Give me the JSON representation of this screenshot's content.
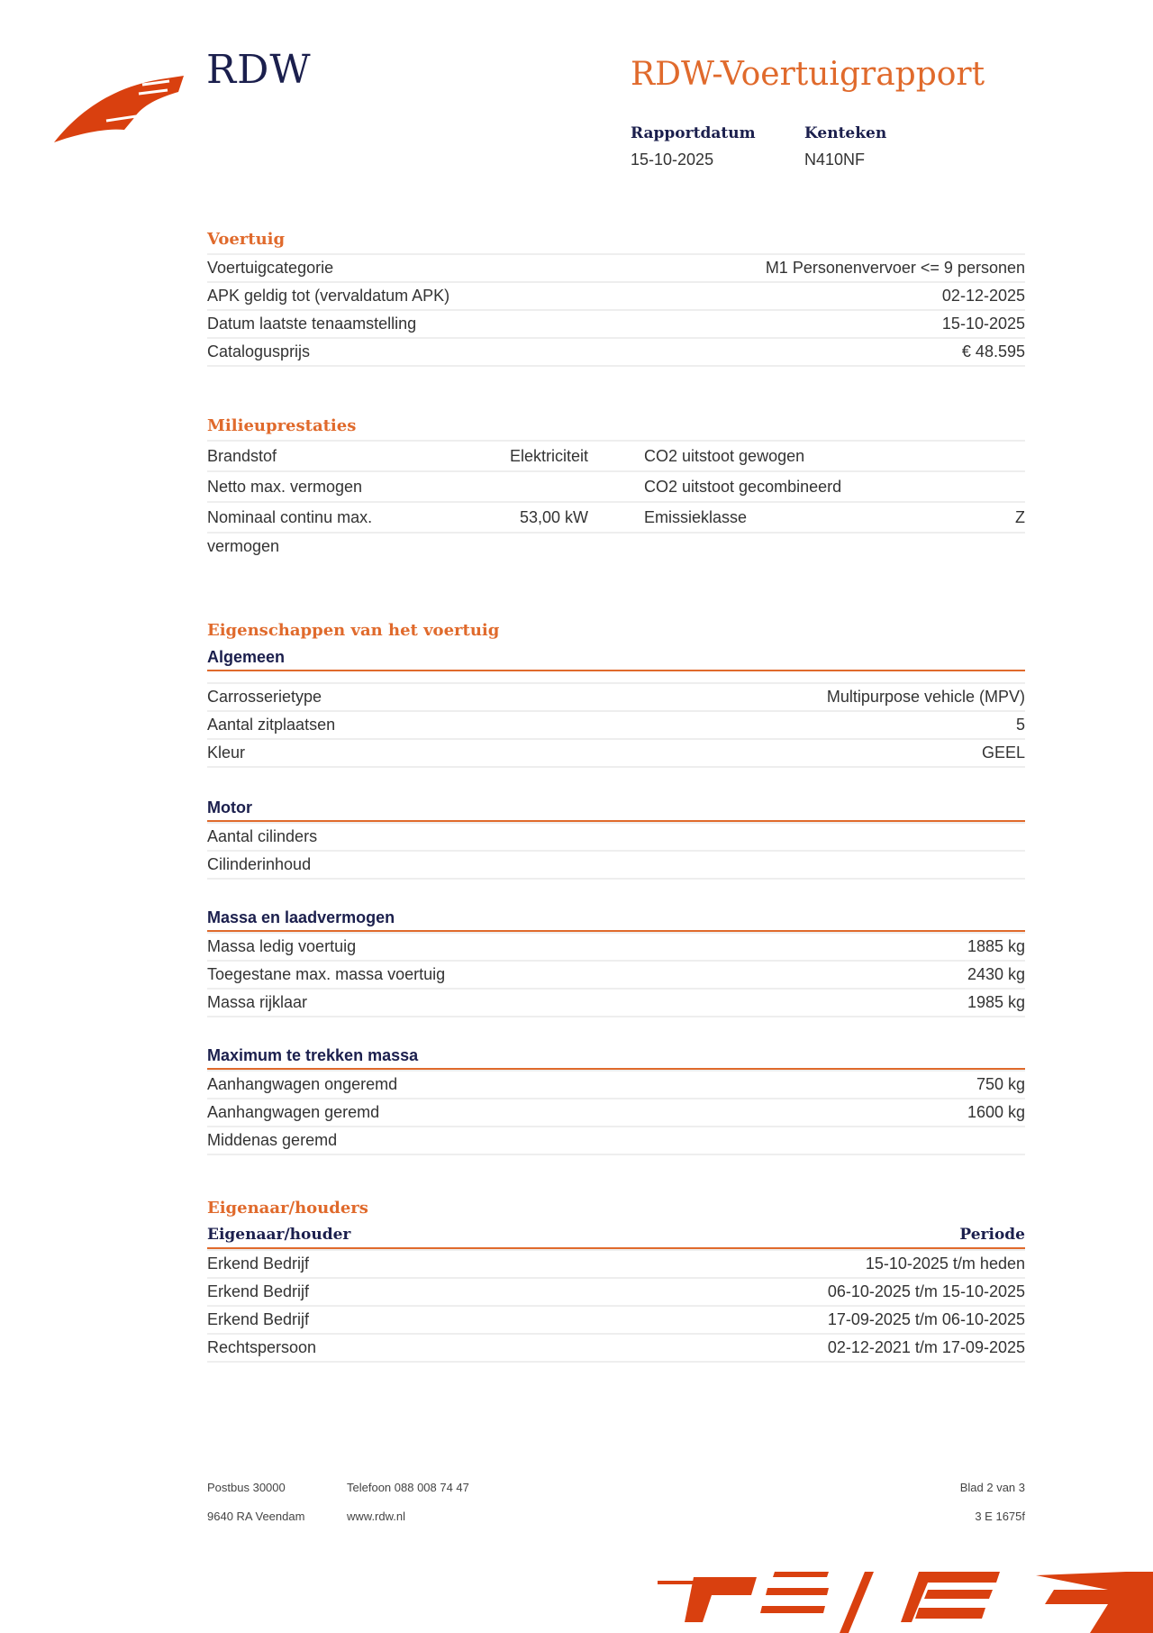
{
  "header": {
    "logo_text": "RDW",
    "title": "RDW-Voertuigrapport",
    "rapportdatum_label": "Rapportdatum",
    "rapportdatum": "15-10-2025",
    "kenteken_label": "Kenteken",
    "kenteken": "N410NF"
  },
  "voertuig": {
    "title": "Voertuig",
    "rows": [
      {
        "label": "Voertuigcategorie",
        "value": "M1 Personenvervoer <= 9 personen"
      },
      {
        "label": "APK geldig tot (vervaldatum APK)",
        "value": "02-12-2025"
      },
      {
        "label": "Datum laatste tenaamstelling",
        "value": "15-10-2025"
      },
      {
        "label": "Catalogusprijs",
        "value": "€ 48.595"
      }
    ]
  },
  "milieu": {
    "title": "Milieuprestaties",
    "rows": [
      {
        "label1": "Brandstof",
        "value1": "Elektriciteit",
        "label2": "CO2 uitstoot gewogen",
        "value2": ""
      },
      {
        "label1": "Netto max. vermogen",
        "value1": "",
        "label2": "CO2 uitstoot gecombineerd",
        "value2": ""
      },
      {
        "label1": "Nominaal continu max. vermogen",
        "value1": "53,00 kW",
        "label2": "Emissieklasse",
        "value2": "Z"
      }
    ]
  },
  "eigenschappen": {
    "title": "Eigenschappen van het voertuig",
    "algemeen": {
      "title": "Algemeen",
      "rows": [
        {
          "label": "Carrosserietype",
          "value": "Multipurpose vehicle (MPV)"
        },
        {
          "label": "Aantal zitplaatsen",
          "value": "5"
        },
        {
          "label": "Kleur",
          "value": "GEEL"
        }
      ]
    },
    "motor": {
      "title": "Motor",
      "rows": [
        {
          "label": "Aantal cilinders",
          "value": ""
        },
        {
          "label": "Cilinderinhoud",
          "value": ""
        }
      ]
    },
    "massa": {
      "title": "Massa en laadvermogen",
      "rows": [
        {
          "label": "Massa ledig voertuig",
          "value": "1885 kg"
        },
        {
          "label": "Toegestane max. massa voertuig",
          "value": "2430 kg"
        },
        {
          "label": "Massa rijklaar",
          "value": "1985 kg"
        }
      ]
    },
    "trekken": {
      "title": "Maximum te trekken massa",
      "rows": [
        {
          "label": "Aanhangwagen ongeremd",
          "value": "750 kg"
        },
        {
          "label": "Aanhangwagen geremd",
          "value": "1600 kg"
        },
        {
          "label": "Middenas geremd",
          "value": ""
        }
      ]
    }
  },
  "eigenaar": {
    "title": "Eigenaar/houders",
    "col1": "Eigenaar/houder",
    "col2": "Periode",
    "rows": [
      {
        "label": "Erkend Bedrijf",
        "value": "15-10-2025 t/m heden"
      },
      {
        "label": "Erkend Bedrijf",
        "value": "06-10-2025 t/m 15-10-2025"
      },
      {
        "label": "Erkend Bedrijf",
        "value": "17-09-2025 t/m 06-10-2025"
      },
      {
        "label": "Rechtspersoon",
        "value": "02-12-2021 t/m 17-09-2025"
      }
    ]
  },
  "footer": {
    "postbus": "Postbus 30000",
    "adres": "9640 RA Veendam",
    "telefoon": "Telefoon 088 008 74 47",
    "website": "www.rdw.nl",
    "blad": "Blad 2 van 3",
    "code": "3 E 1675f"
  },
  "colors": {
    "accent": "#e06a2c",
    "navy": "#1b1f4d",
    "logo": "#d9400f"
  }
}
